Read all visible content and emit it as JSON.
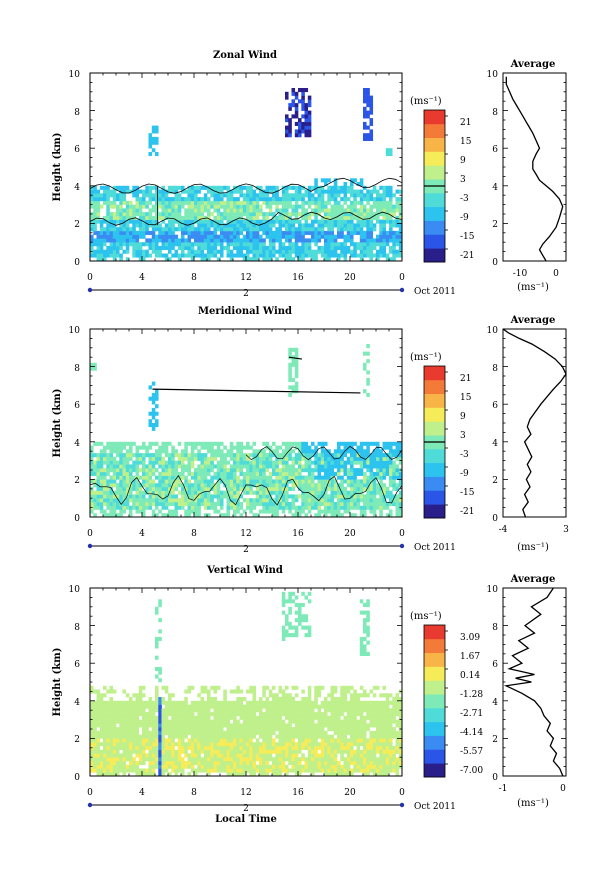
{
  "chart_data": [
    {
      "type": "heatmap",
      "title": "Zonal Wind",
      "ylabel": "Height (km)",
      "unit_label": "(ms⁻¹)",
      "x_ticks": [
        "0",
        "4",
        "8",
        "12",
        "16",
        "20",
        "0"
      ],
      "day_label": "2",
      "date_label": "Oct 2011",
      "y_ticks": [
        "0",
        "2",
        "4",
        "6",
        "8",
        "10"
      ],
      "ylim": [
        0,
        10
      ],
      "colorbar_ticks": [
        "21",
        "15",
        "9",
        "3",
        "-3",
        "-9",
        "-15",
        "-21"
      ],
      "zero_line_level": 0,
      "palette": [
        "#2a1f8a",
        "#2a55e6",
        "#3a8cf2",
        "#2cc3ee",
        "#4fdcd8",
        "#7eeab8",
        "#bff08c",
        "#f6ec5a",
        "#f8b446",
        "#f47a3a",
        "#e83a2e"
      ],
      "profile": {
        "title": "Average",
        "xlabel": "(ms⁻¹)",
        "x_ticks": [
          "-10",
          "0"
        ],
        "xlim": [
          -16,
          3
        ],
        "y_ticks": [
          "0",
          "2",
          "4",
          "6",
          "8",
          "10"
        ],
        "x": [
          -3,
          -4,
          -5,
          -4,
          -2,
          0,
          1,
          2,
          1,
          -1,
          -3,
          -5,
          -6,
          -7,
          -7,
          -6,
          -5,
          -6,
          -7,
          -8,
          -9,
          -10,
          -11,
          -12,
          -13,
          -14,
          -15,
          -15
        ],
        "y": [
          0.0,
          0.3,
          0.6,
          0.9,
          1.3,
          1.8,
          2.3,
          2.9,
          3.3,
          3.7,
          4.0,
          4.3,
          4.6,
          4.9,
          5.3,
          5.7,
          6.0,
          6.4,
          6.8,
          7.1,
          7.4,
          7.7,
          8.0,
          8.3,
          8.6,
          9.0,
          9.4,
          9.8
        ]
      }
    },
    {
      "type": "heatmap",
      "title": "Meridional Wind",
      "ylabel": "Height (km)",
      "unit_label": "(ms⁻¹)",
      "x_ticks": [
        "0",
        "4",
        "8",
        "12",
        "16",
        "20",
        "0"
      ],
      "day_label": "2",
      "date_label": "Oct 2011",
      "y_ticks": [
        "0",
        "2",
        "4",
        "6",
        "8",
        "10"
      ],
      "ylim": [
        0,
        10
      ],
      "colorbar_ticks": [
        "21",
        "15",
        "9",
        "3",
        "-3",
        "-9",
        "-15",
        "-21"
      ],
      "zero_line_level": 0,
      "palette": [
        "#2a1f8a",
        "#2a55e6",
        "#3a8cf2",
        "#2cc3ee",
        "#4fdcd8",
        "#7eeab8",
        "#bff08c",
        "#f6ec5a",
        "#f8b446",
        "#f47a3a",
        "#e83a2e"
      ],
      "profile": {
        "title": "Average",
        "xlabel": "(ms⁻¹)",
        "x_ticks": [
          "-4",
          "3"
        ],
        "xlim": [
          -4,
          3
        ],
        "y_ticks": [
          "0",
          "2",
          "4",
          "6",
          "8",
          "10"
        ],
        "x": [
          -1.5,
          -1.8,
          -1.2,
          -1.6,
          -1.0,
          -1.4,
          -0.9,
          -1.3,
          -0.8,
          -1.2,
          -1.6,
          -0.9,
          -1.3,
          -1.0,
          -0.4,
          0.2,
          0.9,
          1.6,
          2.4,
          3.0,
          2.6,
          1.8,
          0.6,
          -0.8,
          -2.2,
          -3.4,
          -4.0
        ],
        "y": [
          0.0,
          0.4,
          0.8,
          1.2,
          1.6,
          2.0,
          2.4,
          2.8,
          3.2,
          3.6,
          4.0,
          4.4,
          4.8,
          5.2,
          5.6,
          6.0,
          6.4,
          6.8,
          7.2,
          7.6,
          8.0,
          8.4,
          8.8,
          9.2,
          9.5,
          9.8,
          10.0
        ]
      }
    },
    {
      "type": "heatmap",
      "title": "Vertical Wind",
      "ylabel": "Height (km)",
      "xlabel": "Local Time",
      "unit_label": "(ms⁻¹)",
      "x_ticks": [
        "0",
        "4",
        "8",
        "12",
        "16",
        "20",
        "0"
      ],
      "day_label": "2",
      "date_label": "Oct 2011",
      "y_ticks": [
        "0",
        "2",
        "4",
        "6",
        "8",
        "10"
      ],
      "ylim": [
        0,
        10
      ],
      "colorbar_ticks": [
        "3.09",
        "1.67",
        "0.14",
        "-1.28",
        "-2.71",
        "-4.14",
        "-5.57",
        "-7.00"
      ],
      "palette": [
        "#2a1f8a",
        "#2a55e6",
        "#3a8cf2",
        "#2cc3ee",
        "#4fdcd8",
        "#7eeab8",
        "#bff08c",
        "#f6ec5a",
        "#f8b446",
        "#f47a3a",
        "#e83a2e"
      ],
      "profile": {
        "title": "Average",
        "xlabel": "(ms⁻¹)",
        "x_ticks": [
          "-1",
          "0"
        ],
        "xlim": [
          -1,
          0
        ],
        "y_ticks": [
          "0",
          "2",
          "4",
          "6",
          "8",
          "10"
        ],
        "x": [
          -0.05,
          -0.1,
          -0.2,
          -0.15,
          -0.25,
          -0.2,
          -0.3,
          -0.25,
          -0.35,
          -0.4,
          -0.5,
          -0.7,
          -0.95,
          -0.55,
          -0.8,
          -0.5,
          -0.9,
          -0.7,
          -0.85,
          -0.6,
          -0.75,
          -0.5,
          -0.65,
          -0.4,
          -0.55,
          -0.3,
          -0.2
        ],
        "y": [
          0.0,
          0.4,
          0.8,
          1.2,
          1.6,
          2.0,
          2.4,
          2.8,
          3.2,
          3.6,
          4.0,
          4.4,
          4.8,
          5.0,
          5.2,
          5.4,
          5.7,
          6.0,
          6.4,
          6.8,
          7.2,
          7.6,
          8.0,
          8.6,
          9.0,
          9.5,
          10.0
        ]
      }
    }
  ]
}
